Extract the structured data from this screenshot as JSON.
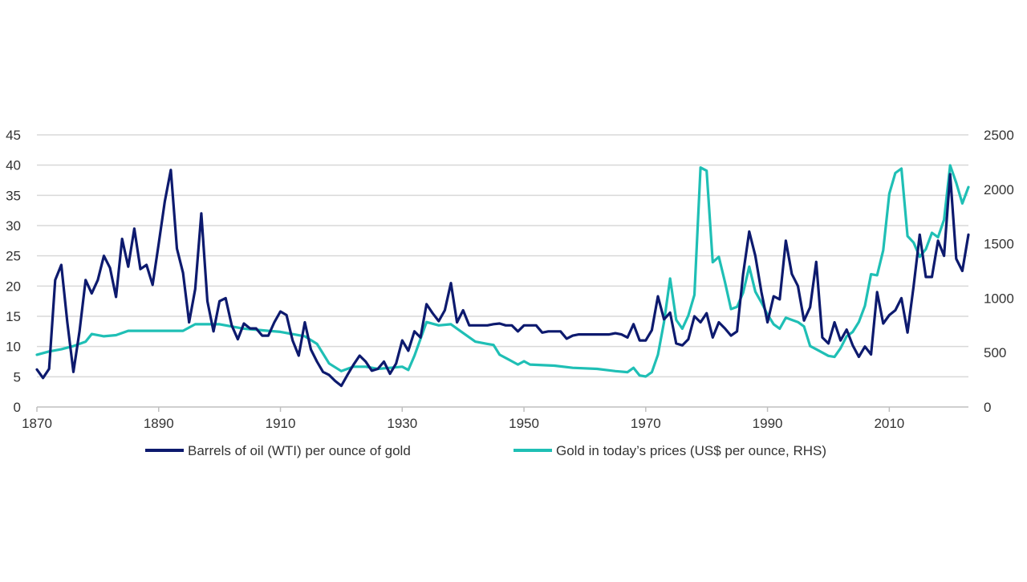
{
  "chart_data": {
    "type": "line",
    "title": "",
    "xlabel": "",
    "ylabel": "",
    "y2label": "",
    "grid": true,
    "legend_position": "bottom",
    "xlim": [
      1870,
      2023
    ],
    "ylim": [
      0,
      45
    ],
    "y2lim": [
      0,
      2500
    ],
    "x_ticks": [
      1870,
      1890,
      1910,
      1930,
      1950,
      1970,
      1990,
      2010
    ],
    "y_ticks": [
      0,
      5,
      10,
      15,
      20,
      25,
      30,
      35,
      40,
      45
    ],
    "y2_ticks": [
      0,
      500,
      1000,
      1500,
      2000,
      2500
    ],
    "colors": {
      "oil": "#0d1a6e",
      "gold": "#1fbfb5",
      "grid": "#d9d9d9",
      "axis": "#bfbfbf"
    },
    "series": [
      {
        "name": "Barrels of oil (WTI) per ounce of gold",
        "axis": "left",
        "points": [
          [
            1870,
            6.2
          ],
          [
            1871,
            4.8
          ],
          [
            1872,
            6.3
          ],
          [
            1873,
            21
          ],
          [
            1874,
            23.5
          ],
          [
            1875,
            14
          ],
          [
            1876,
            5.8
          ],
          [
            1877,
            12.5
          ],
          [
            1878,
            21
          ],
          [
            1879,
            18.8
          ],
          [
            1880,
            21
          ],
          [
            1881,
            25
          ],
          [
            1882,
            23
          ],
          [
            1883,
            18.2
          ],
          [
            1884,
            27.8
          ],
          [
            1885,
            23.2
          ],
          [
            1886,
            29.5
          ],
          [
            1887,
            22.8
          ],
          [
            1888,
            23.5
          ],
          [
            1889,
            20.2
          ],
          [
            1890,
            27
          ],
          [
            1891,
            34
          ],
          [
            1892,
            39.2
          ],
          [
            1893,
            26.2
          ],
          [
            1894,
            22.2
          ],
          [
            1895,
            14
          ],
          [
            1896,
            19.5
          ],
          [
            1897,
            32
          ],
          [
            1898,
            17.5
          ],
          [
            1899,
            12.5
          ],
          [
            1900,
            17.5
          ],
          [
            1901,
            18
          ],
          [
            1902,
            13.5
          ],
          [
            1903,
            11.2
          ],
          [
            1904,
            13.8
          ],
          [
            1905,
            13
          ],
          [
            1906,
            13
          ],
          [
            1907,
            11.8
          ],
          [
            1908,
            11.8
          ],
          [
            1909,
            14
          ],
          [
            1910,
            15.8
          ],
          [
            1911,
            15.2
          ],
          [
            1912,
            11
          ],
          [
            1913,
            8.5
          ],
          [
            1914,
            14
          ],
          [
            1915,
            9.5
          ],
          [
            1916,
            7.5
          ],
          [
            1917,
            5.8
          ],
          [
            1918,
            5.3
          ],
          [
            1919,
            4.3
          ],
          [
            1920,
            3.5
          ],
          [
            1921,
            5.3
          ],
          [
            1922,
            7
          ],
          [
            1923,
            8.5
          ],
          [
            1924,
            7.5
          ],
          [
            1925,
            6
          ],
          [
            1926,
            6.3
          ],
          [
            1927,
            7.5
          ],
          [
            1928,
            5.5
          ],
          [
            1929,
            7.2
          ],
          [
            1930,
            11
          ],
          [
            1931,
            9.3
          ],
          [
            1932,
            12.5
          ],
          [
            1933,
            11.5
          ],
          [
            1934,
            17
          ],
          [
            1935,
            15.5
          ],
          [
            1936,
            14.2
          ],
          [
            1937,
            16
          ],
          [
            1938,
            20.5
          ],
          [
            1939,
            14
          ],
          [
            1940,
            16
          ],
          [
            1941,
            13.5
          ],
          [
            1942,
            13.5
          ],
          [
            1943,
            13.5
          ],
          [
            1944,
            13.5
          ],
          [
            1945,
            13.7
          ],
          [
            1946,
            13.8
          ],
          [
            1947,
            13.5
          ],
          [
            1948,
            13.5
          ],
          [
            1949,
            12.5
          ],
          [
            1950,
            13.5
          ],
          [
            1951,
            13.5
          ],
          [
            1952,
            13.5
          ],
          [
            1953,
            12.3
          ],
          [
            1954,
            12.5
          ],
          [
            1955,
            12.5
          ],
          [
            1956,
            12.5
          ],
          [
            1957,
            11.3
          ],
          [
            1958,
            11.8
          ],
          [
            1959,
            12
          ],
          [
            1960,
            12
          ],
          [
            1961,
            12
          ],
          [
            1962,
            12
          ],
          [
            1963,
            12
          ],
          [
            1964,
            12
          ],
          [
            1965,
            12.2
          ],
          [
            1966,
            12
          ],
          [
            1967,
            11.5
          ],
          [
            1968,
            13.7
          ],
          [
            1969,
            11
          ],
          [
            1970,
            11
          ],
          [
            1971,
            12.7
          ],
          [
            1972,
            18.3
          ],
          [
            1973,
            14.5
          ],
          [
            1974,
            15.6
          ],
          [
            1975,
            10.5
          ],
          [
            1976,
            10.2
          ],
          [
            1977,
            11.2
          ],
          [
            1978,
            15
          ],
          [
            1979,
            14
          ],
          [
            1980,
            15.5
          ],
          [
            1981,
            11.5
          ],
          [
            1982,
            14
          ],
          [
            1983,
            13
          ],
          [
            1984,
            11.8
          ],
          [
            1985,
            12.5
          ],
          [
            1986,
            22
          ],
          [
            1987,
            29
          ],
          [
            1988,
            25
          ],
          [
            1989,
            19
          ],
          [
            1990,
            14
          ],
          [
            1991,
            18.3
          ],
          [
            1992,
            17.8
          ],
          [
            1993,
            27.5
          ],
          [
            1994,
            22
          ],
          [
            1995,
            20
          ],
          [
            1996,
            14.3
          ],
          [
            1997,
            16.5
          ],
          [
            1998,
            24
          ],
          [
            1999,
            11.5
          ],
          [
            2000,
            10.5
          ],
          [
            2001,
            14
          ],
          [
            2002,
            11
          ],
          [
            2003,
            12.8
          ],
          [
            2004,
            10.2
          ],
          [
            2005,
            8.3
          ],
          [
            2006,
            10
          ],
          [
            2007,
            8.7
          ],
          [
            2008,
            19
          ],
          [
            2009,
            13.8
          ],
          [
            2010,
            15.2
          ],
          [
            2011,
            16
          ],
          [
            2012,
            18
          ],
          [
            2013,
            12.3
          ],
          [
            2014,
            20
          ],
          [
            2015,
            28.5
          ],
          [
            2016,
            21.5
          ],
          [
            2017,
            21.5
          ],
          [
            2018,
            27.5
          ],
          [
            2019,
            25
          ],
          [
            2020,
            38.5
          ],
          [
            2021,
            24.5
          ],
          [
            2022,
            22.5
          ],
          [
            2023,
            28.5
          ]
        ]
      },
      {
        "name": "Gold in today’s prices (US$ per ounce, RHS)",
        "axis": "right",
        "points": [
          [
            1870,
            480
          ],
          [
            1872,
            510
          ],
          [
            1874,
            530
          ],
          [
            1876,
            560
          ],
          [
            1878,
            600
          ],
          [
            1879,
            670
          ],
          [
            1881,
            650
          ],
          [
            1883,
            660
          ],
          [
            1885,
            700
          ],
          [
            1890,
            700
          ],
          [
            1894,
            700
          ],
          [
            1896,
            760
          ],
          [
            1900,
            760
          ],
          [
            1904,
            720
          ],
          [
            1908,
            700
          ],
          [
            1910,
            690
          ],
          [
            1914,
            650
          ],
          [
            1916,
            580
          ],
          [
            1918,
            400
          ],
          [
            1920,
            330
          ],
          [
            1922,
            370
          ],
          [
            1924,
            370
          ],
          [
            1926,
            350
          ],
          [
            1928,
            360
          ],
          [
            1930,
            370
          ],
          [
            1931,
            340
          ],
          [
            1932,
            470
          ],
          [
            1934,
            780
          ],
          [
            1936,
            750
          ],
          [
            1938,
            760
          ],
          [
            1940,
            680
          ],
          [
            1942,
            600
          ],
          [
            1944,
            580
          ],
          [
            1945,
            570
          ],
          [
            1946,
            480
          ],
          [
            1948,
            420
          ],
          [
            1949,
            390
          ],
          [
            1950,
            420
          ],
          [
            1951,
            390
          ],
          [
            1955,
            380
          ],
          [
            1958,
            360
          ],
          [
            1962,
            350
          ],
          [
            1965,
            330
          ],
          [
            1967,
            320
          ],
          [
            1968,
            360
          ],
          [
            1969,
            290
          ],
          [
            1970,
            280
          ],
          [
            1971,
            320
          ],
          [
            1972,
            480
          ],
          [
            1973,
            780
          ],
          [
            1974,
            1180
          ],
          [
            1975,
            800
          ],
          [
            1976,
            720
          ],
          [
            1977,
            840
          ],
          [
            1978,
            1030
          ],
          [
            1979,
            2200
          ],
          [
            1980,
            2170
          ],
          [
            1981,
            1330
          ],
          [
            1982,
            1380
          ],
          [
            1983,
            1150
          ],
          [
            1984,
            900
          ],
          [
            1985,
            920
          ],
          [
            1986,
            1050
          ],
          [
            1987,
            1290
          ],
          [
            1988,
            1060
          ],
          [
            1989,
            960
          ],
          [
            1990,
            850
          ],
          [
            1991,
            760
          ],
          [
            1992,
            720
          ],
          [
            1993,
            820
          ],
          [
            1994,
            800
          ],
          [
            1995,
            780
          ],
          [
            1996,
            740
          ],
          [
            1997,
            560
          ],
          [
            1998,
            530
          ],
          [
            1999,
            500
          ],
          [
            2000,
            470
          ],
          [
            2001,
            460
          ],
          [
            2002,
            540
          ],
          [
            2003,
            650
          ],
          [
            2004,
            690
          ],
          [
            2005,
            780
          ],
          [
            2006,
            930
          ],
          [
            2007,
            1220
          ],
          [
            2008,
            1210
          ],
          [
            2009,
            1440
          ],
          [
            2010,
            1960
          ],
          [
            2011,
            2150
          ],
          [
            2012,
            2190
          ],
          [
            2013,
            1570
          ],
          [
            2014,
            1510
          ],
          [
            2015,
            1380
          ],
          [
            2016,
            1450
          ],
          [
            2017,
            1600
          ],
          [
            2018,
            1560
          ],
          [
            2019,
            1720
          ],
          [
            2020,
            2220
          ],
          [
            2021,
            2060
          ],
          [
            2022,
            1870
          ],
          [
            2023,
            2020
          ]
        ]
      }
    ]
  }
}
